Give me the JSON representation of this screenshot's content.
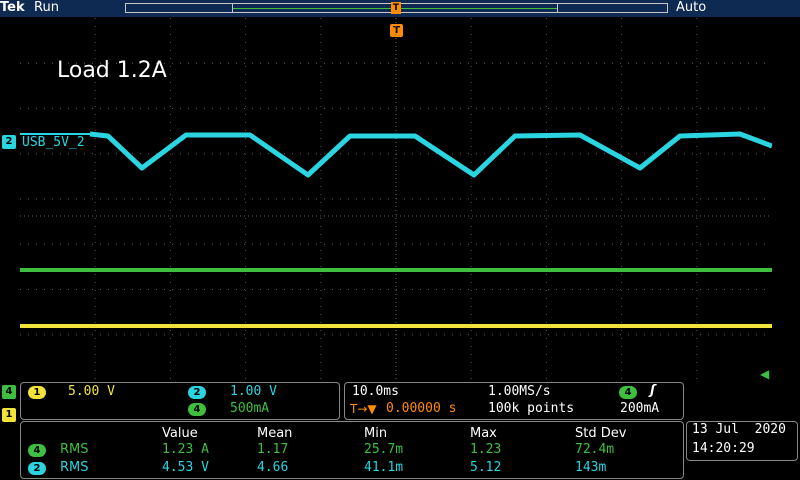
{
  "header": {
    "brand": "Tek",
    "run_state": "Run",
    "trigger_mode": "Auto",
    "trigger_marker_top": "T",
    "trigger_marker": "T"
  },
  "screen": {
    "annotation": "Load 1.2A",
    "ch2_label": "USB_5V_2"
  },
  "channel_markers": {
    "ch2": "2",
    "ch4": "4",
    "ch1": "1"
  },
  "channel_settings": {
    "ch1_badge": "1",
    "ch1_scale": "5.00 V",
    "ch2_badge": "2",
    "ch2_scale": "1.00 V",
    "ch4_badge": "4",
    "ch4_scale": "500mA"
  },
  "timebase": {
    "horizontal_scale": "10.0ms",
    "sample_rate": "1.00MS/s",
    "trigger_position_icon": "T→▼",
    "trigger_position": "0.00000 s",
    "record_length": "100k points",
    "trigger_source_badge": "4",
    "trigger_slope_icon": "rising-edge",
    "trigger_slope": "ʃ",
    "trigger_level": "200mA"
  },
  "measurements": {
    "headers": [
      "Value",
      "Mean",
      "Min",
      "Max",
      "Std Dev"
    ],
    "rows": [
      {
        "badge": "4",
        "type": "RMS",
        "value": "1.23 A",
        "mean": "1.17",
        "min": "25.7m",
        "max": "1.23",
        "std": "72.4m",
        "color": "#3fbf3f"
      },
      {
        "badge": "2",
        "type": "RMS",
        "value": "4.53 V",
        "mean": "4.66",
        "min": "41.1m",
        "max": "5.12",
        "std": "143m",
        "color": "#2ad4e0"
      }
    ]
  },
  "datetime": {
    "date": "13 Jul  2020",
    "time": "14:20:29"
  },
  "colors": {
    "ch1": "#f2e33a",
    "ch2": "#2ad4e0",
    "ch4": "#3fbf3f",
    "trigger": "#ff8c00",
    "bar": "#0f2a52"
  }
}
